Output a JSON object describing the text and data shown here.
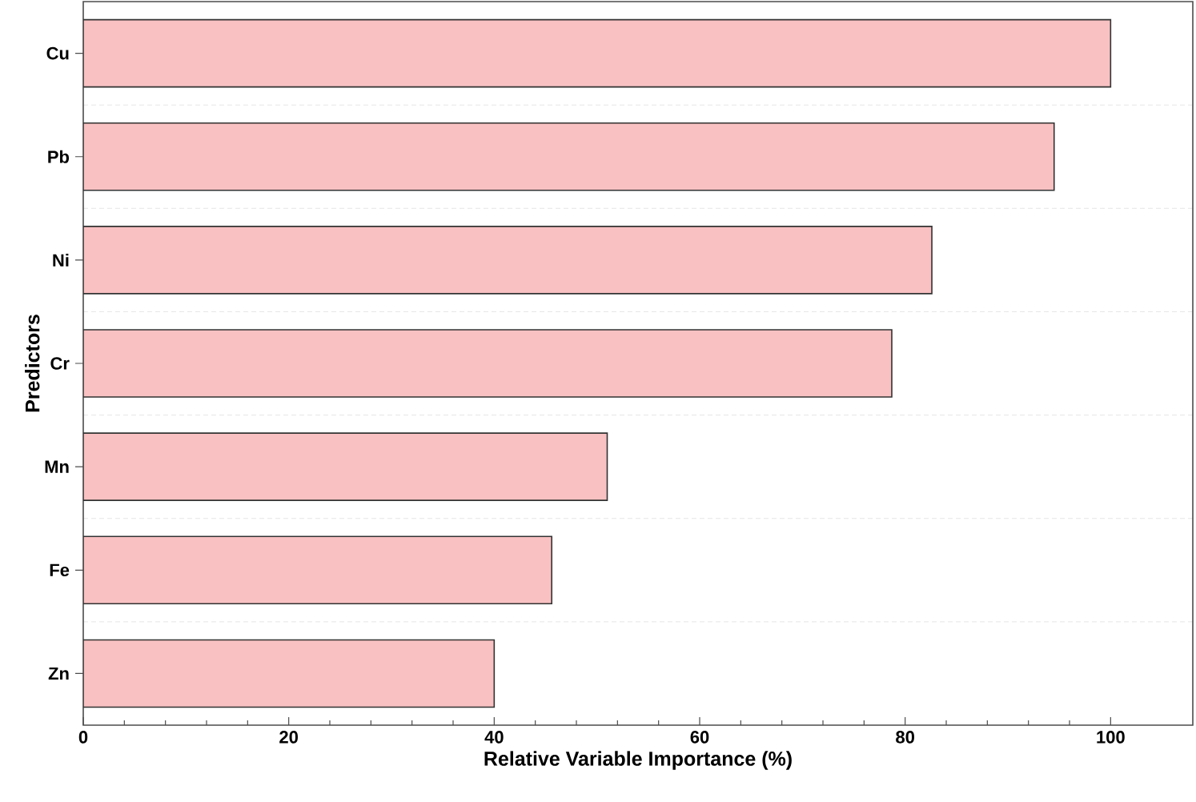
{
  "chart_data": {
    "type": "bar",
    "orientation": "horizontal",
    "xlabel": "Relative Variable Importance (%)",
    "ylabel": "Predictors",
    "categories": [
      "Cu",
      "Pb",
      "Ni",
      "Cr",
      "Mn",
      "Fe",
      "Zn"
    ],
    "values": [
      100,
      94.5,
      82.6,
      78.7,
      51.0,
      45.6,
      40
    ],
    "color": "#f9c1c2",
    "xlim": [
      0,
      108
    ],
    "xticks": [
      0,
      20,
      40,
      60,
      80,
      100
    ],
    "grid": "y"
  }
}
